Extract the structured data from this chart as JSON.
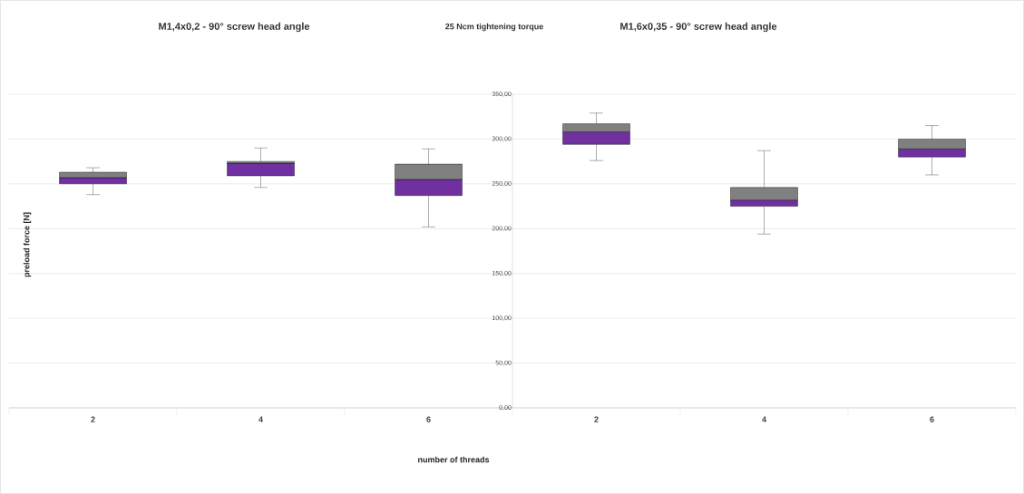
{
  "chart_data": {
    "type": "box",
    "title": "25 Ncm tightening torque",
    "annotations": [
      "M1,4x0,2 - 90° screw head angle",
      "M1,6x0,35 - 90° screw head angle"
    ],
    "xlabel": "number of threads",
    "ylabel": "preload force [N]",
    "categories": [
      "2",
      "4",
      "6",
      "2",
      "4",
      "6"
    ],
    "colors": [
      "#7030a0",
      "#7030a0",
      "#7030a0",
      "#7030a0",
      "#7030a0",
      "#7030a0"
    ],
    "boxes": [
      {
        "low": 238,
        "q1": 250,
        "median": 257,
        "q3": 263,
        "high": 268
      },
      {
        "low": 246,
        "q1": 259,
        "median": 273,
        "q3": 275,
        "high": 290
      },
      {
        "low": 202,
        "q1": 237,
        "median": 255,
        "q3": 272,
        "high": 289
      },
      {
        "low": 276,
        "q1": 294,
        "median": 308,
        "q3": 317,
        "high": 329
      },
      {
        "low": 194,
        "q1": 225,
        "median": 232,
        "q3": 246,
        "high": 287
      },
      {
        "low": 260,
        "q1": 280,
        "median": 289,
        "q3": 300,
        "high": 315
      }
    ],
    "ylim": [
      0,
      350
    ],
    "yticks": [
      {
        "value": 0,
        "label": "0,00"
      },
      {
        "value": 50,
        "label": "50,00"
      },
      {
        "value": 100,
        "label": "100,00"
      },
      {
        "value": 150,
        "label": "150,00"
      },
      {
        "value": 200,
        "label": "200,00"
      },
      {
        "value": 250,
        "label": "250,00"
      },
      {
        "value": 300,
        "label": "300,00"
      },
      {
        "value": 350,
        "label": "350,00"
      }
    ],
    "grid": "y"
  }
}
